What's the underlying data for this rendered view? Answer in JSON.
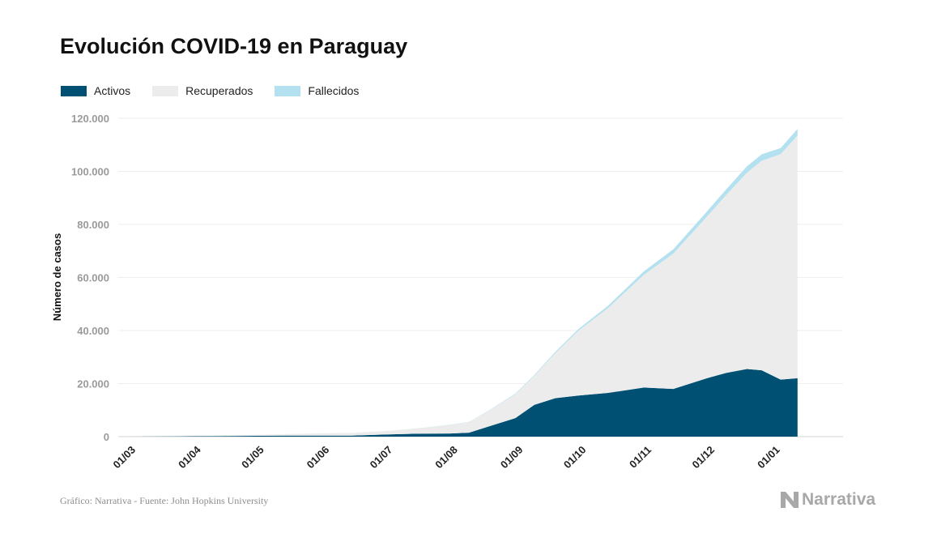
{
  "chart_data": {
    "type": "area",
    "stacked": true,
    "title": "Evolución COVID-19 en Paraguay",
    "xlabel": "",
    "ylabel": "Número de casos",
    "ylim": [
      0,
      120000
    ],
    "yticks": [
      0,
      20000,
      40000,
      60000,
      80000,
      100000,
      120000
    ],
    "ytick_labels": [
      "0",
      "20.000",
      "40.000",
      "60.000",
      "80.000",
      "100.000",
      "120.000"
    ],
    "xticks": [
      "01/03",
      "01/04",
      "01/05",
      "01/06",
      "01/07",
      "01/08",
      "01/09",
      "01/10",
      "01/11",
      "01/12",
      "01/01"
    ],
    "grid": true,
    "legend_position": "top-left",
    "x": [
      "2020-03-01",
      "2020-03-31",
      "2020-04-15",
      "2020-05-01",
      "2020-05-15",
      "2020-06-01",
      "2020-06-15",
      "2020-07-01",
      "2020-07-15",
      "2020-08-01",
      "2020-08-10",
      "2020-08-20",
      "2020-09-01",
      "2020-09-10",
      "2020-09-20",
      "2020-10-01",
      "2020-10-15",
      "2020-11-01",
      "2020-11-15",
      "2020-12-01",
      "2020-12-10",
      "2020-12-20",
      "2020-12-27",
      "2021-01-05",
      "2021-01-13"
    ],
    "series": [
      {
        "name": "Activos",
        "color": "#005073",
        "values": [
          0,
          150,
          250,
          300,
          400,
          400,
          400,
          800,
          1100,
          1200,
          1500,
          4000,
          7000,
          12000,
          14500,
          15500,
          16500,
          18500,
          18000,
          22000,
          24000,
          25500,
          25000,
          21500,
          22000
        ]
      },
      {
        "name": "Recuperados",
        "color": "#ececec",
        "values": [
          0,
          20,
          200,
          400,
          600,
          800,
          1000,
          1300,
          1900,
          3200,
          4000,
          6000,
          9000,
          11000,
          17000,
          24500,
          32000,
          42500,
          51000,
          61000,
          67000,
          74000,
          79000,
          85000,
          91500
        ]
      },
      {
        "name": "Fallecidos",
        "color": "#b3e1f0",
        "values": [
          0,
          3,
          8,
          10,
          12,
          13,
          15,
          20,
          30,
          50,
          100,
          150,
          200,
          250,
          500,
          600,
          800,
          1300,
          1600,
          1900,
          2100,
          2400,
          2400,
          2300,
          2500
        ]
      }
    ]
  },
  "footer": {
    "source": "Gráfico: Narrativa - Fuente: John Hopkins University",
    "brand": "Narrativa"
  }
}
